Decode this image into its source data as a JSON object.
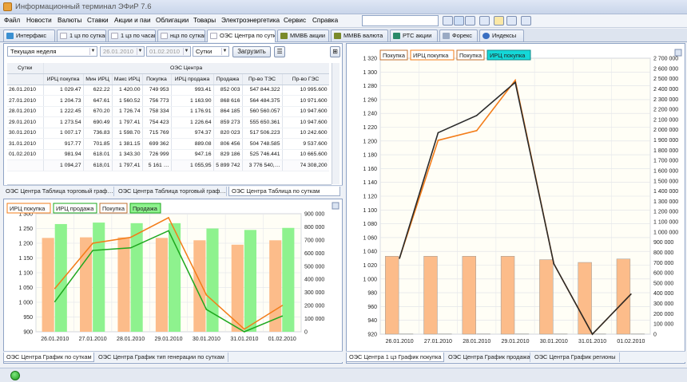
{
  "app": {
    "title": "Информационный терминал ЭФиР 7.6"
  },
  "menu": [
    "Файл",
    "Новости",
    "Валюты",
    "Ставки",
    "Акции и паи",
    "Облигации",
    "Товары",
    "Электроэнергетика",
    "Сервис",
    "Справка"
  ],
  "tabs": [
    {
      "label": "Интерфакс",
      "color": "#3a8fd1"
    },
    {
      "label": "1 цз по суткам",
      "color": "#ffffff"
    },
    {
      "label": "1 цз по часам",
      "color": "#ffffff"
    },
    {
      "label": "нцз по суткам",
      "color": "#ffffff"
    },
    {
      "label": "ОЭС Центра по суткам",
      "color": "#ffffff"
    },
    {
      "label": "ММВБ акции",
      "color": "#7a8a2a"
    },
    {
      "label": "ММВБ валюта",
      "color": "#7a8a2a"
    },
    {
      "label": "РТС акции",
      "color": "#2a8a6a"
    },
    {
      "label": "Форекс",
      "color": "#9aaac4"
    },
    {
      "label": "Индексы",
      "color": "#3a6fc1"
    }
  ],
  "controls": {
    "period": "Текущая неделя",
    "date_from": "26.01.2010",
    "date_to": "01.02.2010",
    "granularity": "Сутки",
    "load_button": "Загрузить"
  },
  "table": {
    "group_header": "ОЭС Центра",
    "first_header": "Сутки",
    "columns": [
      "ИРЦ покупка",
      "Мин ИРЦ",
      "Макс ИРЦ",
      "Покупка",
      "ИРЦ продажа",
      "Продажа",
      "Пр-во ТЭС",
      "Пр-во ГЭС"
    ],
    "rows": [
      [
        "26.01.2010",
        "1 029.47",
        "622.22",
        "1 420.00",
        "749 953",
        "993.41",
        "852 003",
        "547 844.322",
        "10 995.600"
      ],
      [
        "27.01.2010",
        "1 204.73",
        "647.61",
        "1 560.52",
        "756 773",
        "1 163.90",
        "868 616",
        "564 484.375",
        "10 971.600"
      ],
      [
        "28.01.2010",
        "1 222.45",
        "670.20",
        "1 726.74",
        "758 334",
        "1 176.91",
        "864 185",
        "560 560.057",
        "10 947.600"
      ],
      [
        "29.01.2010",
        "1 273.54",
        "690.49",
        "1 797.41",
        "754 423",
        "1 226.64",
        "859 273",
        "555 650.361",
        "10 947.600"
      ],
      [
        "30.01.2010",
        "1 007.17",
        "736.83",
        "1 598.70",
        "715 769",
        "974.37",
        "820 023",
        "517 506.223",
        "10 242.600"
      ],
      [
        "31.01.2010",
        "917.77",
        "701.85",
        "1 381.15",
        "699 362",
        "889.08",
        "806 456",
        "504 748.585",
        "9 537.600"
      ],
      [
        "01.02.2010",
        "981.94",
        "618.01",
        "1 343.30",
        "726 999",
        "947.16",
        "829 186",
        "525 746.441",
        "10 665.600"
      ]
    ],
    "summary": [
      "",
      "1 094,27",
      "618,01",
      "1 797,41",
      "5 161 …",
      "1 055,95",
      "5 899 742",
      "3 776 540,…",
      "74 308,200"
    ]
  },
  "top_left_tabs": [
    "ОЭС Центра Таблица торговый граф…",
    "ОЭС Центра Таблица торговый граф…",
    "ОЭС Центра Таблица по суткам"
  ],
  "bottom_left_tabs": [
    "ОЭС Центра График по суткам",
    "ОЭС Центра График тип генерации по суткам"
  ],
  "right_tabs": [
    "ОЭС Центра 1 цз График покупка",
    "ОЭС Центра График продажа",
    "ОЭС Центра График регионы"
  ],
  "chart_data": [
    {
      "type": "bar",
      "categories": [
        "26.01.2010",
        "27.01.2010",
        "28.01.2010",
        "29.01.2010",
        "30.01.2010",
        "31.01.2010",
        "01.02.2010"
      ],
      "legend": [
        "ИРЦ покупка",
        "ИРЦ продажа",
        "Покупка",
        "Продажа"
      ],
      "y_left": {
        "ticks": [
          "900",
          "950",
          "1 000",
          "1 050",
          "1 100",
          "1 150",
          "1 200",
          "1 250",
          "1 300"
        ],
        "lim": [
          900,
          1300
        ]
      },
      "y_right": {
        "ticks": [
          "0",
          "100 000",
          "200 000",
          "300 000",
          "400 000",
          "500 000",
          "600 000",
          "700 000",
          "800 000",
          "900 000"
        ],
        "lim": [
          0,
          900000
        ]
      },
      "series": [
        {
          "name": "Покупка",
          "axis": "left",
          "kind": "bar",
          "color": "#fcbc8a",
          "values": [
            1218,
            1220,
            1220,
            1218,
            1210,
            1195,
            1210
          ]
        },
        {
          "name": "Продажа",
          "axis": "left",
          "kind": "bar",
          "color": "#8ef28e",
          "values": [
            1265,
            1270,
            1268,
            1268,
            1250,
            1245,
            1252
          ]
        },
        {
          "name": "ИРЦ покупка",
          "axis": "right",
          "kind": "line",
          "color": "#f37c18",
          "values": [
            330000,
            675000,
            720000,
            870000,
            280000,
            20000,
            200000
          ]
        },
        {
          "name": "ИРЦ продажа",
          "axis": "right",
          "kind": "line",
          "color": "#1ea81e",
          "values": [
            230000,
            620000,
            640000,
            770000,
            170000,
            -10000,
            120000
          ]
        }
      ]
    },
    {
      "type": "bar",
      "categories": [
        "26.01.2010",
        "27.01.2010",
        "28.01.2010",
        "29.01.2010",
        "30.01.2010",
        "31.01.2010",
        "01.02.2010"
      ],
      "legend": [
        "Покупка",
        "ИРЦ покупка",
        "Покупка",
        "ИРЦ покупка"
      ],
      "y_left": {
        "ticks": [
          "920",
          "940",
          "960",
          "980",
          "1 000",
          "1 020",
          "1 040",
          "1 060",
          "1 080",
          "1 100",
          "1 120",
          "1 140",
          "1 160",
          "1 180",
          "1 200",
          "1 220",
          "1 240",
          "1 260",
          "1 280",
          "1 300",
          "1 320"
        ],
        "lim": [
          920,
          1320
        ]
      },
      "y_right": {
        "ticks": [
          "0",
          "100 000",
          "200 000",
          "300 000",
          "400 000",
          "500 000",
          "600 000",
          "700 000",
          "800 000",
          "900 000",
          "1 000 000",
          "1 100 000",
          "1 200 000",
          "1 300 000",
          "1 400 000",
          "1 500 000",
          "1 600 000",
          "1 700 000",
          "1 800 000",
          "1 900 000",
          "2 000 000",
          "2 100 000",
          "2 200 000",
          "2 300 000",
          "2 400 000",
          "2 500 000",
          "2 600 000",
          "2 700 000"
        ],
        "lim": [
          0,
          2700000
        ]
      },
      "series": [
        {
          "name": "Покупка",
          "axis": "left",
          "kind": "bar",
          "color": "#fcbc8a",
          "values": [
            1033,
            1033,
            1033,
            1033,
            1028,
            1024,
            1029
          ]
        },
        {
          "name": "ИРЦ покупка",
          "axis": "right",
          "kind": "bar",
          "color": "#14b8b8",
          "values": [
            2410,
            2420,
            2425,
            2420,
            2280,
            2220,
            2330
          ]
        },
        {
          "name": "Покупка",
          "axis": "left",
          "kind": "line",
          "color": "#f37c18",
          "values": [
            1030,
            1201,
            1215,
            1288,
            1022,
            915,
            978
          ]
        },
        {
          "name": "ИРЦ покупка",
          "axis": "left",
          "kind": "line",
          "color": "#2a2a2a",
          "values": [
            1030,
            1212,
            1237,
            1285,
            1022,
            914,
            978
          ]
        }
      ]
    }
  ]
}
